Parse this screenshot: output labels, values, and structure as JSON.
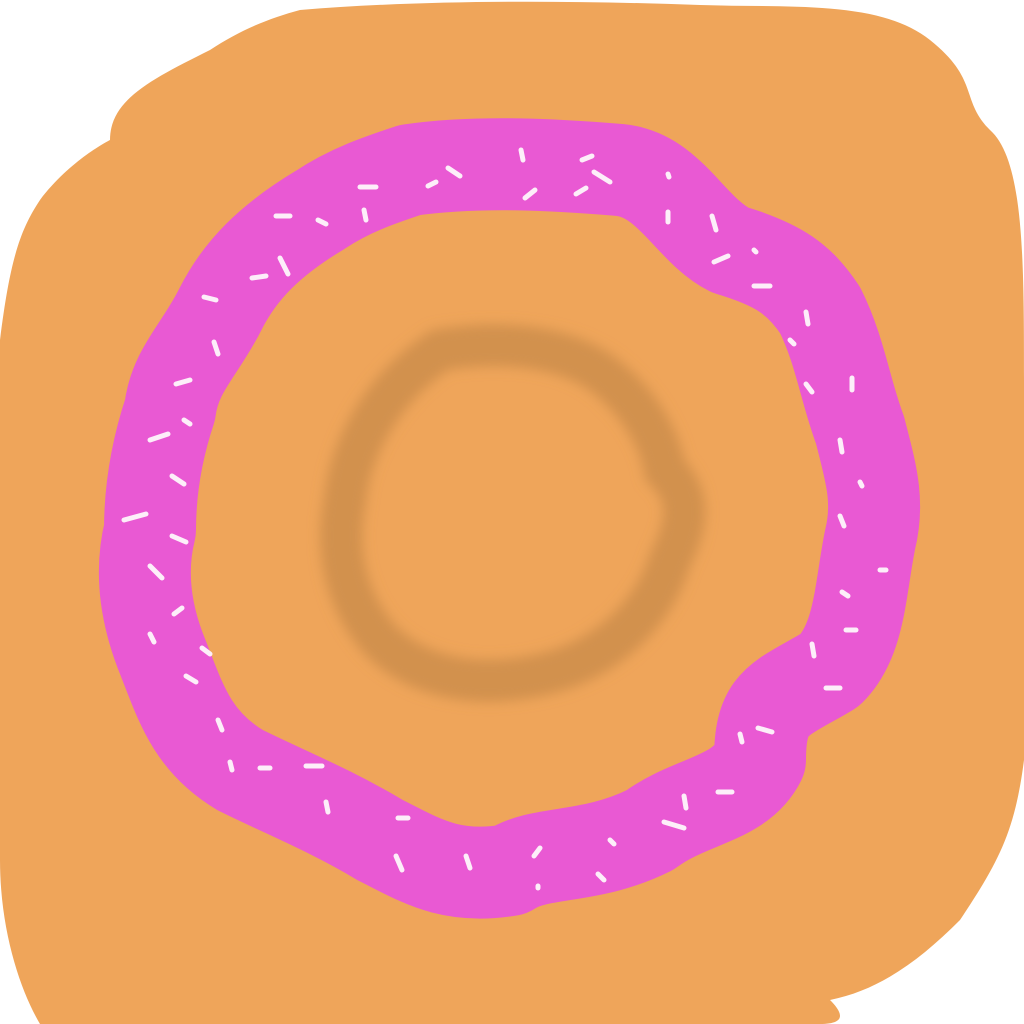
{
  "drawing": {
    "subject": "donut",
    "colors": {
      "background": "#ffffff",
      "dough": "#efa55a",
      "frosting": "#e959d3",
      "sprinkles": "#fdeef9",
      "hole_shadow": "#d2914d"
    }
  }
}
